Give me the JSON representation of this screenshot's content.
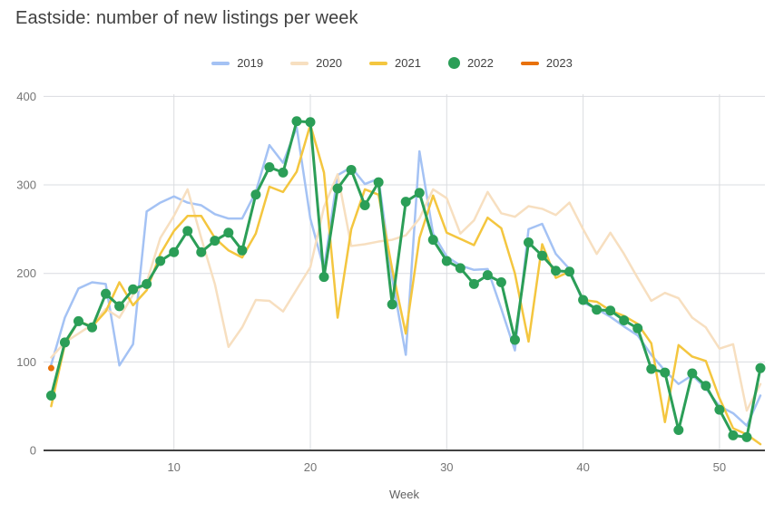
{
  "chart_data": {
    "type": "line",
    "title": "Eastside: number of new listings per week",
    "xlabel": "Week",
    "ylabel": "",
    "x_start_week": 1,
    "x_end_week": 53,
    "x_ticks": [
      10,
      20,
      30,
      40,
      50
    ],
    "y_ticks": [
      0,
      100,
      200,
      300,
      400
    ],
    "ylim": [
      0,
      400
    ],
    "grid": true,
    "legend_position": "top",
    "series": [
      {
        "name": "2019",
        "color": "#a4c2f4",
        "marker": false,
        "values": [
          97,
          150,
          183,
          190,
          188,
          96,
          120,
          270,
          280,
          287,
          280,
          277,
          267,
          262,
          262,
          292,
          345,
          325,
          365,
          262,
          205,
          311,
          320,
          301,
          307,
          195,
          108,
          338,
          245,
          219,
          209,
          204,
          205,
          160,
          113,
          250,
          256,
          222,
          205,
          167,
          160,
          151,
          140,
          130,
          108,
          90,
          75,
          85,
          70,
          50,
          42,
          28,
          62
        ]
      },
      {
        "name": "2020",
        "color": "#f7dfc0",
        "marker": false,
        "values": [
          105,
          122,
          132,
          142,
          160,
          150,
          176,
          190,
          240,
          265,
          295,
          240,
          188,
          117,
          139,
          170,
          169,
          157,
          182,
          207,
          275,
          312,
          231,
          233,
          236,
          238,
          243,
          262,
          295,
          285,
          245,
          260,
          292,
          268,
          264,
          276,
          273,
          266,
          280,
          250,
          222,
          246,
          222,
          195,
          169,
          178,
          172,
          150,
          139,
          115,
          120,
          45,
          75
        ]
      },
      {
        "name": "2021",
        "color": "#f4c63f",
        "marker": false,
        "values": [
          50,
          120,
          146,
          140,
          157,
          190,
          164,
          181,
          222,
          248,
          265,
          265,
          240,
          226,
          218,
          245,
          298,
          292,
          315,
          368,
          314,
          150,
          250,
          295,
          289,
          205,
          132,
          240,
          288,
          246,
          239,
          232,
          263,
          251,
          200,
          123,
          233,
          195,
          202,
          170,
          168,
          158,
          152,
          143,
          121,
          32,
          119,
          106,
          101,
          59,
          25,
          18,
          7
        ]
      },
      {
        "name": "2022",
        "color": "#2b9e57",
        "marker": true,
        "values": [
          62,
          122,
          146,
          139,
          177,
          163,
          182,
          188,
          214,
          224,
          248,
          224,
          237,
          246,
          226,
          289,
          320,
          314,
          372,
          371,
          196,
          296,
          317,
          277,
          303,
          165,
          281,
          291,
          238,
          214,
          206,
          188,
          198,
          190,
          125,
          235,
          220,
          203,
          202,
          170,
          159,
          158,
          147,
          138,
          92,
          88,
          23,
          87,
          73,
          46,
          17,
          15,
          93
        ]
      },
      {
        "name": "2023",
        "color": "#e8710a",
        "marker": true,
        "values": [
          93
        ]
      }
    ]
  }
}
